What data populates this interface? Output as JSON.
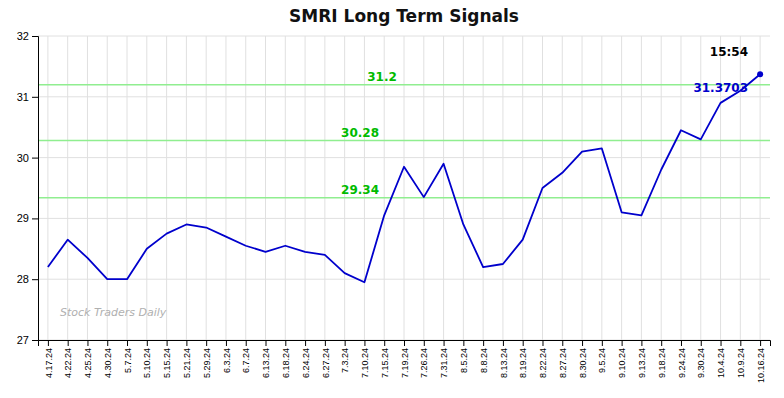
{
  "chart_data": {
    "type": "line",
    "title": "SMRI Long Term Signals",
    "categories": [
      "4.17.24",
      "4.22.24",
      "4.25.24",
      "4.30.24",
      "5.7.24",
      "5.10.24",
      "5.15.24",
      "5.21.24",
      "5.29.24",
      "6.3.24",
      "6.7.24",
      "6.13.24",
      "6.18.24",
      "6.24.24",
      "6.27.24",
      "7.3.24",
      "7.10.24",
      "7.15.24",
      "7.19.24",
      "7.26.24",
      "7.31.24",
      "8.5.24",
      "8.8.24",
      "8.13.24",
      "8.19.24",
      "8.22.24",
      "8.27.24",
      "8.30.24",
      "9.5.24",
      "9.10.24",
      "9.13.24",
      "9.18.24",
      "9.24.24",
      "9.30.24",
      "10.4.24",
      "10.9.24",
      "10.16.24"
    ],
    "values": [
      28.2,
      28.65,
      28.35,
      28.0,
      28.0,
      28.5,
      28.75,
      28.9,
      28.85,
      28.7,
      28.55,
      28.45,
      28.55,
      28.45,
      28.4,
      28.1,
      27.95,
      29.05,
      29.85,
      29.35,
      29.9,
      28.9,
      28.2,
      28.25,
      28.65,
      29.5,
      29.75,
      30.1,
      30.15,
      29.1,
      29.05,
      29.8,
      30.45,
      30.3,
      30.9,
      31.1,
      31.37
    ],
    "color": "#0000CC",
    "ylim": [
      27,
      32
    ],
    "yticks": [
      27,
      28,
      29,
      30,
      31,
      32
    ],
    "grid": true,
    "reference_lines": [
      {
        "y": 31.2,
        "label": "31.2",
        "color": "#90EE90",
        "label_color": "#00BB00"
      },
      {
        "y": 30.28,
        "label": "30.28",
        "color": "#90EE90",
        "label_color": "#00BB00"
      },
      {
        "y": 29.34,
        "label": "29.34",
        "color": "#90EE90",
        "label_color": "#00BB00"
      }
    ],
    "annotations": [
      {
        "text": "15:54",
        "color": "#000000"
      },
      {
        "text": "31.3703",
        "color": "#0000CC"
      }
    ],
    "watermark": "Stock Traders Daily"
  }
}
